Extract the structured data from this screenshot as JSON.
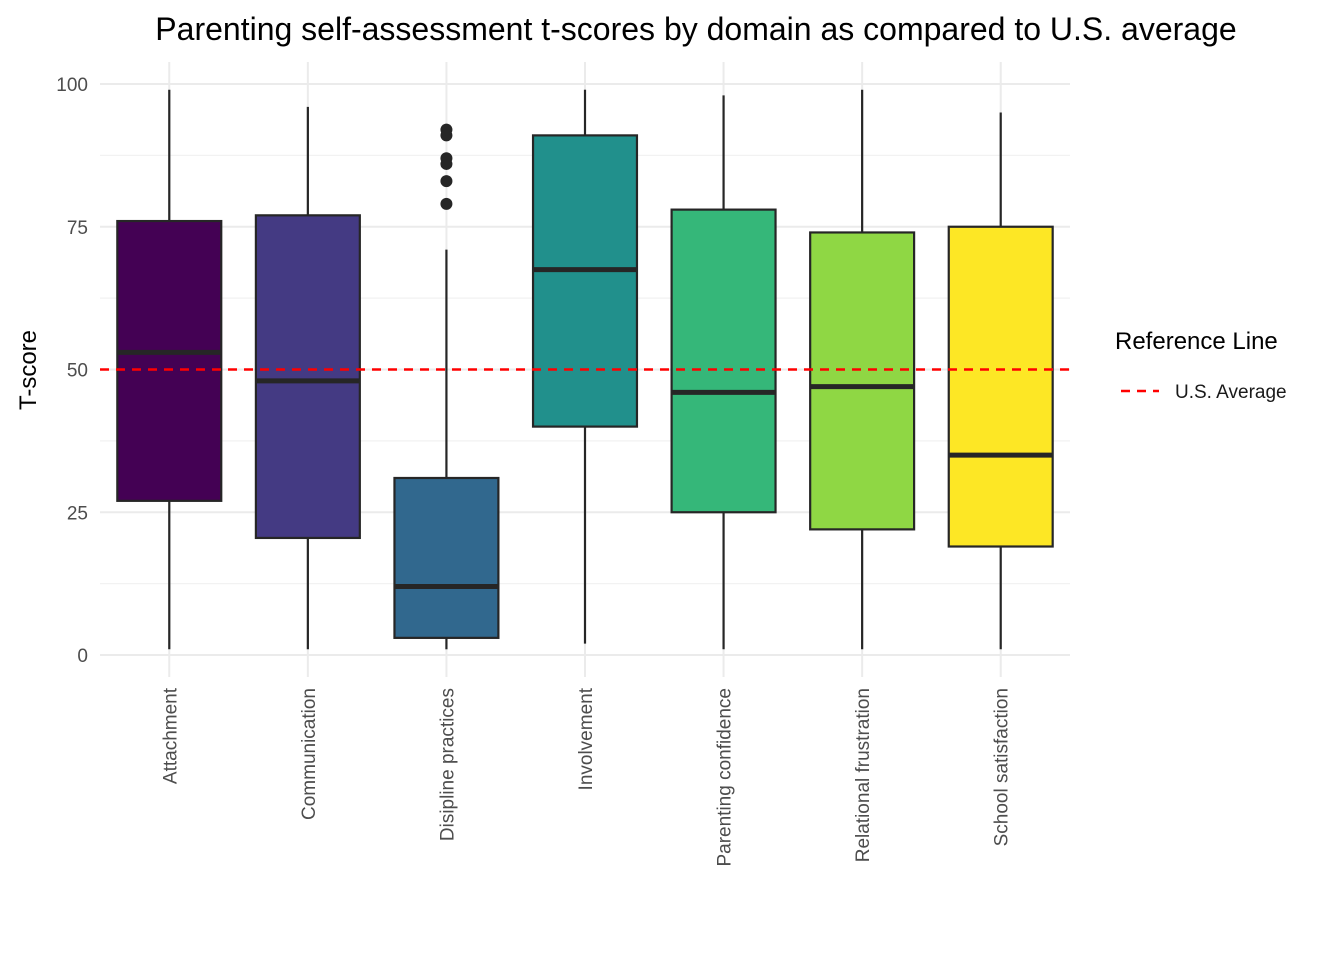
{
  "chart_data": {
    "type": "boxplot",
    "title": "Parenting self-assessment t-scores by domain as compared to U.S. average",
    "xlabel": "",
    "ylabel": "T-score",
    "ylim": [
      0,
      100
    ],
    "yticks": [
      0,
      25,
      50,
      75,
      100
    ],
    "grid": true,
    "categories": [
      "Attachment",
      "Communication",
      "Disipline practices",
      "Involvement",
      "Parenting confidence",
      "Relational frustration",
      "School satisfaction"
    ],
    "boxes": [
      {
        "category": "Attachment",
        "whisker_low": 1,
        "q1": 27,
        "median": 53,
        "q3": 76,
        "whisker_high": 99,
        "outliers": [],
        "color": "#440154"
      },
      {
        "category": "Communication",
        "whisker_low": 1,
        "q1": 20.5,
        "median": 48,
        "q3": 77,
        "whisker_high": 96,
        "outliers": [],
        "color": "#443A83"
      },
      {
        "category": "Disipline practices",
        "whisker_low": 1,
        "q1": 3,
        "median": 12,
        "q3": 31,
        "whisker_high": 71,
        "outliers": [
          79,
          83,
          86,
          87,
          91,
          92
        ],
        "color": "#31688E"
      },
      {
        "category": "Involvement",
        "whisker_low": 2,
        "q1": 40,
        "median": 67.5,
        "q3": 91,
        "whisker_high": 99,
        "outliers": [],
        "color": "#21908C"
      },
      {
        "category": "Parenting confidence",
        "whisker_low": 1,
        "q1": 25,
        "median": 46,
        "q3": 78,
        "whisker_high": 98,
        "outliers": [],
        "color": "#35B779"
      },
      {
        "category": "Relational frustration",
        "whisker_low": 1,
        "q1": 22,
        "median": 47,
        "q3": 74,
        "whisker_high": 99,
        "outliers": [],
        "color": "#8FD744"
      },
      {
        "category": "School satisfaction",
        "whisker_low": 1,
        "q1": 19,
        "median": 35,
        "q3": 75,
        "whisker_high": 95,
        "outliers": [],
        "color": "#FDE725"
      }
    ],
    "reference_line": {
      "value": 50,
      "label": "U.S. Average",
      "color": "#FF0000",
      "style": "dashed"
    },
    "legend": {
      "title": "Reference Line",
      "position": "right",
      "entries": [
        {
          "label": "U.S. Average",
          "color": "#FF0000",
          "style": "dashed"
        }
      ]
    }
  }
}
